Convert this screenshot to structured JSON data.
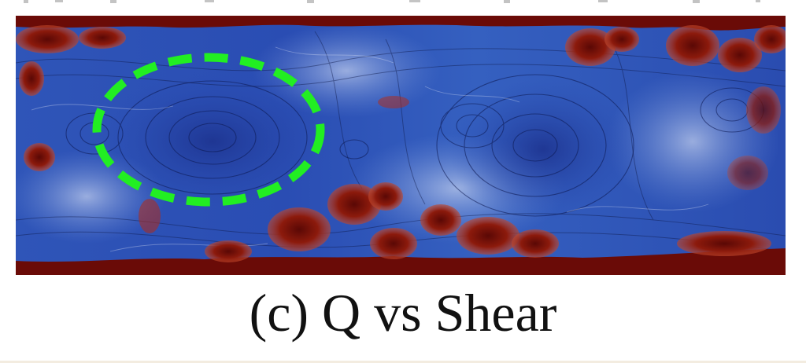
{
  "caption": "(c) Q vs Shear",
  "colors": {
    "background_blue": "#2b4fb6",
    "deep_red": "#6a0b07",
    "mid_red": "#b52a14",
    "highlight_green": "#22ee22"
  }
}
